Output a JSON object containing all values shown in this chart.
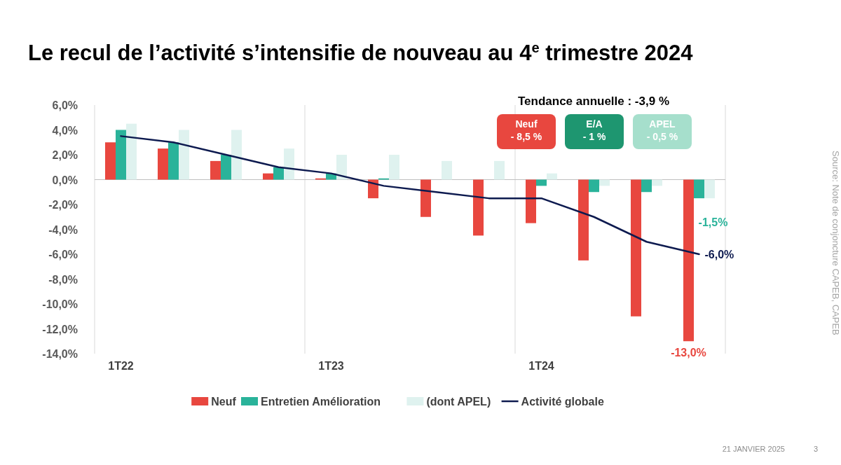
{
  "chart_data": {
    "type": "bar",
    "title": "Le recul de l’activité s’intensifie de nouveau au 4$^{e}$ trimestre 2024",
    "categories": [
      "1T22",
      null,
      null,
      null,
      "1T23",
      null,
      null,
      null,
      "1T24",
      null,
      null,
      null
    ],
    "series": [
      {
        "name": "Neuf",
        "color": "#e8473f",
        "values": [
          3,
          2.5,
          1.5,
          0.5,
          0.1,
          -1.5,
          -3,
          -4.5,
          -3.5,
          -6.5,
          -11,
          -13
        ],
        "value_labels": [
          null,
          null,
          null,
          null,
          null,
          null,
          null,
          null,
          null,
          null,
          null,
          "-13,0%"
        ]
      },
      {
        "name": "Entretien Amélioration",
        "color": "#2ab39a",
        "values": [
          4,
          3,
          2,
          1,
          0.5,
          0.1,
          0,
          0,
          -0.5,
          -1,
          -1,
          -1.5
        ],
        "value_labels": [
          null,
          null,
          null,
          null,
          null,
          null,
          null,
          null,
          null,
          null,
          null,
          "-1,5%"
        ]
      },
      {
        "name": "(dont APEL)",
        "color": "#dff2ef",
        "values": [
          4.5,
          4,
          4,
          2.5,
          2,
          2,
          1.5,
          1.5,
          0.5,
          -0.5,
          -0.5,
          -1.5
        ]
      },
      {
        "name": "Activité globale",
        "type": "line",
        "color": "#0d1a4f",
        "values": [
          3.5,
          3,
          2,
          1,
          0.5,
          -0.5,
          -1,
          -1.5,
          -1.5,
          -3,
          -5,
          -6
        ],
        "value_labels": [
          null,
          null,
          null,
          null,
          null,
          null,
          null,
          null,
          null,
          null,
          null,
          "-6,0%"
        ]
      }
    ],
    "ylim": [
      -14,
      6
    ],
    "yticks": [
      {
        "value": 6,
        "label": "6,0%"
      },
      {
        "value": 4,
        "label": "4,0%"
      },
      {
        "value": 2,
        "label": "2,0%"
      },
      {
        "value": 0,
        "label": "0,0%"
      },
      {
        "value": -2,
        "label": "-2,0%"
      },
      {
        "value": -4,
        "label": "-4,0%"
      },
      {
        "value": -6,
        "label": "-6,0%"
      },
      {
        "value": -8,
        "label": "-8,0%"
      },
      {
        "value": -10,
        "label": "-10,0%"
      },
      {
        "value": -12,
        "label": "-12,0%"
      },
      {
        "value": -14,
        "label": "-14,0%"
      }
    ],
    "grid": "x",
    "legend": "bottom",
    "annotations": [
      "Tendance annuelle : -3,9 %",
      "Neuf\n- 8,5 %",
      "E/A\n- 1 %",
      "APEL\n- 0,5 %",
      "Source: Note de conjoncture CAPEB, CAPEB",
      "21 JANVIER 2025",
      "3"
    ]
  }
}
